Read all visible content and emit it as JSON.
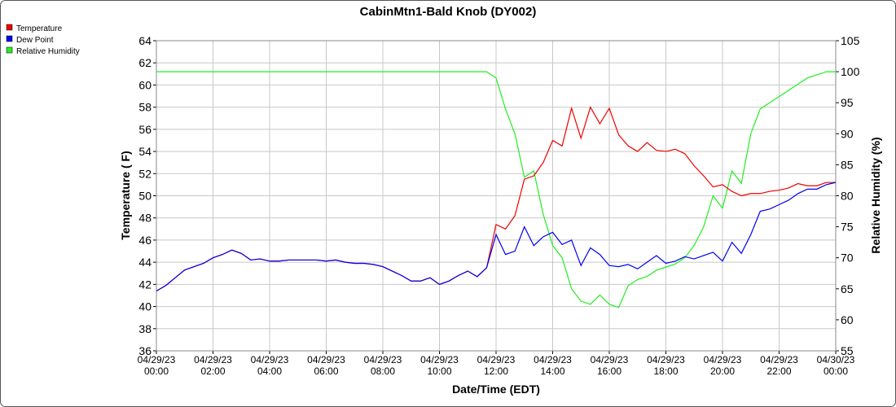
{
  "chart_data": {
    "type": "line",
    "title": "CabinMtn1-Bald Knob (DY002)",
    "x_label": "Date/Time (EDT)",
    "y_label": "Temperature ( F)",
    "y2_label": "Relative Humidity (%)",
    "x": [
      "04/29/23 00:00",
      "04/29/23 00:20",
      "04/29/23 00:40",
      "04/29/23 01:00",
      "04/29/23 01:20",
      "04/29/23 01:40",
      "04/29/23 02:00",
      "04/29/23 02:20",
      "04/29/23 02:40",
      "04/29/23 03:00",
      "04/29/23 03:20",
      "04/29/23 03:40",
      "04/29/23 04:00",
      "04/29/23 04:20",
      "04/29/23 04:40",
      "04/29/23 05:00",
      "04/29/23 05:20",
      "04/29/23 05:40",
      "04/29/23 06:00",
      "04/29/23 06:20",
      "04/29/23 06:40",
      "04/29/23 07:00",
      "04/29/23 07:20",
      "04/29/23 07:40",
      "04/29/23 08:00",
      "04/29/23 08:20",
      "04/29/23 08:40",
      "04/29/23 09:00",
      "04/29/23 09:20",
      "04/29/23 09:40",
      "04/29/23 10:00",
      "04/29/23 10:20",
      "04/29/23 10:40",
      "04/29/23 11:00",
      "04/29/23 11:20",
      "04/29/23 11:40",
      "04/29/23 12:00",
      "04/29/23 12:20",
      "04/29/23 12:40",
      "04/29/23 13:00",
      "04/29/23 13:20",
      "04/29/23 13:40",
      "04/29/23 14:00",
      "04/29/23 14:20",
      "04/29/23 14:40",
      "04/29/23 15:00",
      "04/29/23 15:20",
      "04/29/23 15:40",
      "04/29/23 16:00",
      "04/29/23 16:20",
      "04/29/23 16:40",
      "04/29/23 17:00",
      "04/29/23 17:20",
      "04/29/23 17:40",
      "04/29/23 18:00",
      "04/29/23 18:20",
      "04/29/23 18:40",
      "04/29/23 19:00",
      "04/29/23 19:20",
      "04/29/23 19:40",
      "04/29/23 20:00",
      "04/29/23 20:20",
      "04/29/23 20:40",
      "04/29/23 21:00",
      "04/29/23 21:20",
      "04/29/23 21:40",
      "04/29/23 22:00",
      "04/29/23 22:20",
      "04/29/23 22:40",
      "04/29/23 23:00",
      "04/29/23 23:20",
      "04/29/23 23:40",
      "04/30/23 00:00"
    ],
    "series": [
      {
        "name": "Temperature",
        "color": "#ee0000",
        "axis": "y",
        "values": [
          41.4,
          41.9,
          42.6,
          43.3,
          43.6,
          43.9,
          44.4,
          44.7,
          45.1,
          44.8,
          44.2,
          44.3,
          44.1,
          44.1,
          44.2,
          44.2,
          44.2,
          44.2,
          44.1,
          44.2,
          44.0,
          43.9,
          43.9,
          43.8,
          43.6,
          43.2,
          42.8,
          42.3,
          42.3,
          42.6,
          42.0,
          42.3,
          42.8,
          43.2,
          42.7,
          43.5,
          47.4,
          47.0,
          48.2,
          51.5,
          51.8,
          53.0,
          55.0,
          54.5,
          57.9,
          55.2,
          58.0,
          56.5,
          57.9,
          55.5,
          54.5,
          54.0,
          54.8,
          54.1,
          54.0,
          54.2,
          53.8,
          52.7,
          51.8,
          50.8,
          51.0,
          50.4,
          50.0,
          50.2,
          50.2,
          50.4,
          50.5,
          50.7,
          51.1,
          50.9,
          50.9,
          51.2,
          51.2
        ]
      },
      {
        "name": "Dew Point",
        "color": "#0000ee",
        "axis": "y",
        "values": [
          41.4,
          41.9,
          42.6,
          43.3,
          43.6,
          43.9,
          44.4,
          44.7,
          45.1,
          44.8,
          44.2,
          44.3,
          44.1,
          44.1,
          44.2,
          44.2,
          44.2,
          44.2,
          44.1,
          44.2,
          44.0,
          43.9,
          43.9,
          43.8,
          43.6,
          43.2,
          42.8,
          42.3,
          42.3,
          42.6,
          42.0,
          42.3,
          42.8,
          43.2,
          42.7,
          43.5,
          46.5,
          44.7,
          45.0,
          47.2,
          45.5,
          46.3,
          46.7,
          45.6,
          46.0,
          43.7,
          45.3,
          44.7,
          43.7,
          43.6,
          43.8,
          43.4,
          44.0,
          44.6,
          43.9,
          44.1,
          44.5,
          44.3,
          44.6,
          44.9,
          44.1,
          45.8,
          44.8,
          46.5,
          48.6,
          48.8,
          49.2,
          49.6,
          50.2,
          50.6,
          50.6,
          51.0,
          51.2
        ]
      },
      {
        "name": "Relative Humidity",
        "color": "#22ee22",
        "axis": "y2",
        "values": [
          100,
          100,
          100,
          100,
          100,
          100,
          100,
          100,
          100,
          100,
          100,
          100,
          100,
          100,
          100,
          100,
          100,
          100,
          100,
          100,
          100,
          100,
          100,
          100,
          100,
          100,
          100,
          100,
          100,
          100,
          100,
          100,
          100,
          100,
          100,
          100,
          99,
          94,
          90,
          83,
          84,
          77,
          72,
          70,
          65,
          63,
          62.5,
          64,
          62.5,
          62,
          65.5,
          66.5,
          67,
          68,
          68.5,
          69,
          70,
          72,
          75,
          80,
          78,
          84,
          82,
          90,
          94,
          95,
          96,
          97,
          98,
          99,
          99.5,
          100,
          100
        ]
      }
    ],
    "xlim": [
      "04/29/23 00:00",
      "04/30/23 00:00"
    ],
    "xticks": [
      "04/29/23 00:00",
      "04/29/23 02:00",
      "04/29/23 04:00",
      "04/29/23 06:00",
      "04/29/23 08:00",
      "04/29/23 10:00",
      "04/29/23 12:00",
      "04/29/23 14:00",
      "04/29/23 16:00",
      "04/29/23 18:00",
      "04/29/23 20:00",
      "04/29/23 22:00",
      "04/30/23 00:00"
    ],
    "ylim": [
      36,
      64
    ],
    "yticks": [
      36,
      38,
      40,
      42,
      44,
      46,
      48,
      50,
      52,
      54,
      56,
      58,
      60,
      62,
      64
    ],
    "y2lim": [
      55,
      105
    ],
    "y2ticks": [
      55,
      60,
      65,
      70,
      75,
      80,
      85,
      90,
      95,
      100,
      105
    ],
    "grid": true,
    "legend": "top-left"
  }
}
